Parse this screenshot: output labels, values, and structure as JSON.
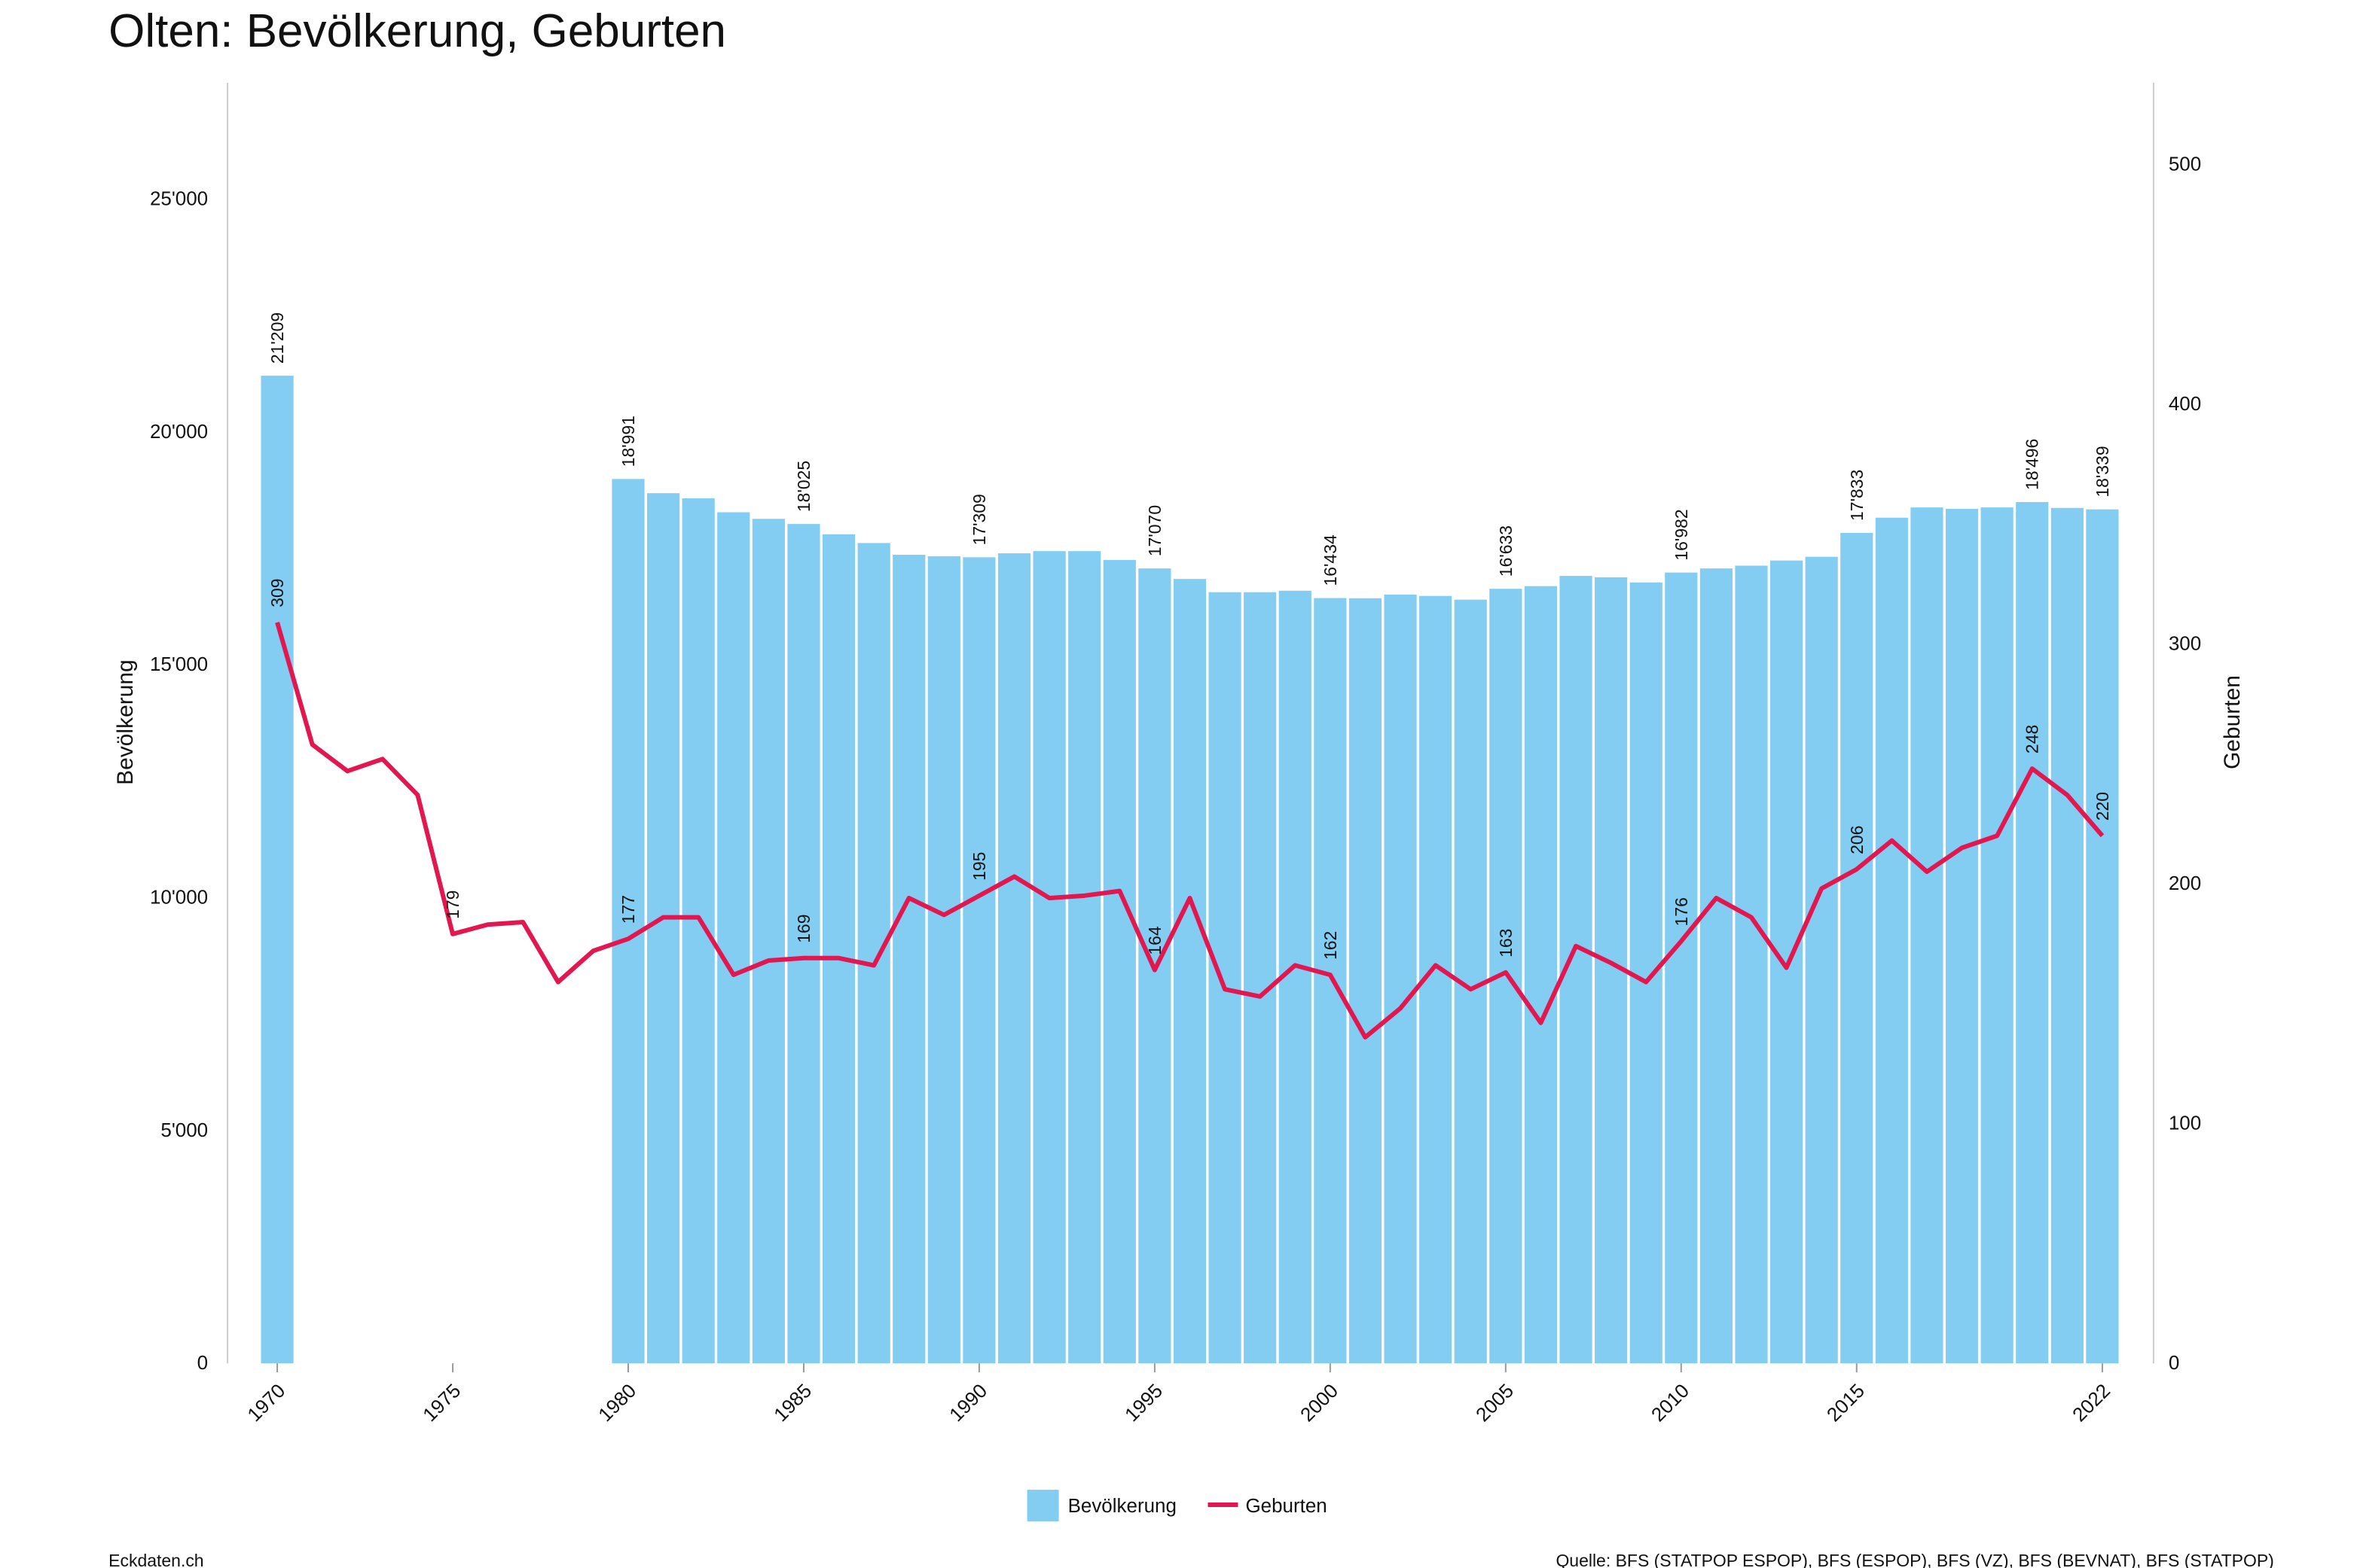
{
  "chart_data": {
    "type": "bar+line",
    "title": "Olten: Bevölkerung, Geburten",
    "x_tick_labels": [
      "1970",
      "1975",
      "1980",
      "1985",
      "1990",
      "1995",
      "2000",
      "2005",
      "2010",
      "2015",
      "2022"
    ],
    "left_axis": {
      "label": "Bevölkerung",
      "ylim": [
        0,
        27500
      ],
      "ticks": [
        0,
        5000,
        10000,
        15000,
        20000,
        25000
      ],
      "tick_labels": [
        "0",
        "5'000",
        "10'000",
        "15'000",
        "20'000",
        "25'000"
      ]
    },
    "right_axis": {
      "label": "Geburten",
      "ylim": [
        0,
        534
      ],
      "ticks": [
        0,
        100,
        200,
        300,
        400,
        500
      ],
      "tick_labels": [
        "0",
        "100",
        "200",
        "300",
        "400",
        "500"
      ]
    },
    "series": [
      {
        "name": "Bevölkerung",
        "type": "bar",
        "axis": "left",
        "color": "#82cdf1",
        "x": [
          1970,
          1980,
          1981,
          1982,
          1983,
          1984,
          1985,
          1986,
          1987,
          1988,
          1989,
          1990,
          1991,
          1992,
          1993,
          1994,
          1995,
          1996,
          1997,
          1998,
          1999,
          2000,
          2001,
          2002,
          2003,
          2004,
          2005,
          2006,
          2007,
          2008,
          2009,
          2010,
          2011,
          2012,
          2013,
          2014,
          2015,
          2016,
          2017,
          2018,
          2019,
          2020,
          2021,
          2022
        ],
        "values": [
          21209,
          18991,
          18686,
          18576,
          18277,
          18135,
          18025,
          17804,
          17616,
          17364,
          17333,
          17309,
          17395,
          17442,
          17442,
          17253,
          17070,
          16844,
          16560,
          16560,
          16592,
          16434,
          16430,
          16510,
          16480,
          16400,
          16633,
          16690,
          16910,
          16880,
          16770,
          16982,
          17070,
          17130,
          17240,
          17320,
          17833,
          18160,
          18380,
          18350,
          18380,
          18496,
          18370,
          18339
        ],
        "labels": {
          "1970": "21'209",
          "1980": "18'991",
          "1985": "18'025",
          "1990": "17'309",
          "1995": "17'070",
          "2000": "16'434",
          "2005": "16'633",
          "2010": "16'982",
          "2015": "17'833",
          "2020": "18'496",
          "2022": "18'339"
        }
      },
      {
        "name": "Geburten",
        "type": "line",
        "axis": "right",
        "color": "#e3174f",
        "x": [
          1970,
          1971,
          1972,
          1973,
          1974,
          1975,
          1976,
          1977,
          1978,
          1979,
          1980,
          1981,
          1982,
          1983,
          1984,
          1985,
          1986,
          1987,
          1988,
          1989,
          1990,
          1991,
          1992,
          1993,
          1994,
          1995,
          1996,
          1997,
          1998,
          1999,
          2000,
          2001,
          2002,
          2003,
          2004,
          2005,
          2006,
          2007,
          2008,
          2009,
          2010,
          2011,
          2012,
          2013,
          2014,
          2015,
          2016,
          2017,
          2018,
          2019,
          2020,
          2021,
          2022
        ],
        "values": [
          309,
          258,
          247,
          252,
          237,
          179,
          183,
          184,
          159,
          172,
          177,
          186,
          186,
          162,
          168,
          169,
          169,
          166,
          194,
          187,
          195,
          203,
          194,
          195,
          197,
          164,
          194,
          156,
          153,
          166,
          162,
          136,
          148,
          166,
          156,
          163,
          142,
          174,
          167,
          159,
          176,
          194,
          186,
          165,
          198,
          206,
          218,
          205,
          215,
          220,
          248,
          237,
          220
        ],
        "labels": {
          "1970": "309",
          "1975": "179",
          "1980": "177",
          "1985": "169",
          "1990": "195",
          "1995": "164",
          "2000": "162",
          "2005": "163",
          "2010": "176",
          "2015": "206",
          "2020": "248",
          "2022": "220"
        }
      }
    ],
    "legend_placement": "bottom-center",
    "grid": false
  },
  "footer": {
    "left": "Eckdaten.ch",
    "right": "Quelle: BFS (STATPOP ESPOP), BFS (ESPOP), BFS (VZ), BFS (BEVNAT), BFS (STATPOP)"
  }
}
